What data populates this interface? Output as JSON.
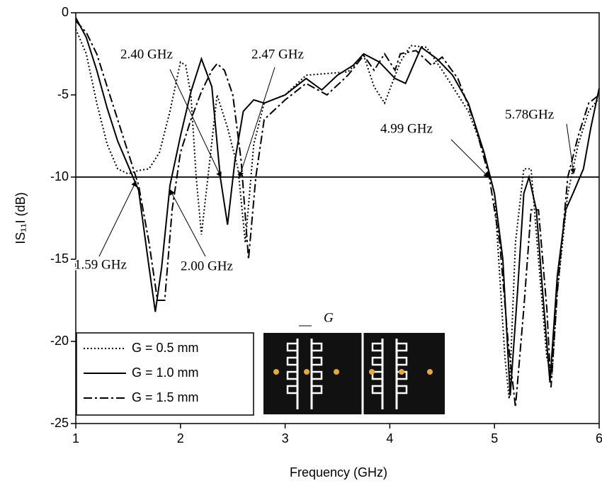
{
  "chart_data": {
    "type": "line",
    "xlabel": "Frequency (GHz)",
    "ylabel": "IS₁₁I (dB)",
    "xlim": [
      1,
      6
    ],
    "xticks": [
      1,
      2,
      3,
      4,
      5,
      6
    ],
    "ylim": [
      -25,
      0
    ],
    "yticks": [
      -25,
      -20,
      -15,
      -10,
      -5,
      0
    ],
    "reference_line": -10,
    "legend": "lower left",
    "inset_label": "G",
    "annotations": [
      "2.40 GHz",
      "2.47 GHz",
      "1.59 GHz",
      "2.00 GHz",
      "4.99 GHz",
      "5.78GHz"
    ],
    "series": [
      {
        "name": "G = 0.5 mm",
        "color": "#000000",
        "dash": "dotted",
        "x": [
          1.0,
          1.1,
          1.2,
          1.3,
          1.4,
          1.5,
          1.6,
          1.7,
          1.8,
          1.9,
          2.0,
          2.05,
          2.1,
          2.15,
          2.2,
          2.28,
          2.35,
          2.45,
          2.55,
          2.62,
          2.7,
          2.8,
          3.0,
          3.2,
          3.4,
          3.6,
          3.75,
          3.85,
          3.95,
          4.1,
          4.2,
          4.35,
          4.5,
          4.6,
          4.75,
          4.9,
          5.0,
          5.1,
          5.14,
          5.2,
          5.28,
          5.35,
          5.42,
          5.5,
          5.55,
          5.6,
          5.7,
          5.8,
          5.9,
          6.0
        ],
        "values": [
          -1,
          -2.5,
          -5.5,
          -8,
          -9.5,
          -9.8,
          -9.6,
          -9.5,
          -8.5,
          -6,
          -3,
          -3.2,
          -5,
          -10,
          -13.5,
          -9,
          -5,
          -7,
          -9.5,
          -14,
          -8,
          -5.5,
          -5,
          -3.8,
          -3.7,
          -3.6,
          -2.6,
          -4.5,
          -5.5,
          -3,
          -2,
          -2.1,
          -3.5,
          -4.5,
          -6,
          -8.5,
          -11,
          -21,
          -23.5,
          -14,
          -9.5,
          -9.5,
          -15,
          -21,
          -22,
          -17,
          -11,
          -8,
          -6,
          -5.2
        ]
      },
      {
        "name": "G = 1.0 mm",
        "color": "#000000",
        "dash": "solid",
        "x": [
          1.0,
          1.1,
          1.2,
          1.3,
          1.4,
          1.5,
          1.6,
          1.7,
          1.76,
          1.82,
          1.9,
          2.0,
          2.1,
          2.2,
          2.3,
          2.38,
          2.45,
          2.52,
          2.6,
          2.7,
          2.8,
          3.0,
          3.2,
          3.35,
          3.5,
          3.65,
          3.75,
          3.9,
          4.05,
          4.15,
          4.3,
          4.45,
          4.6,
          4.75,
          4.9,
          5.0,
          5.08,
          5.15,
          5.22,
          5.28,
          5.33,
          5.4,
          5.46,
          5.53,
          5.6,
          5.68,
          5.75,
          5.85,
          5.92,
          6.0
        ],
        "values": [
          -0.3,
          -1.5,
          -3.5,
          -5.8,
          -7.8,
          -9.3,
          -10.8,
          -15.5,
          -18.2,
          -15.5,
          -10.5,
          -7.5,
          -4.8,
          -2.8,
          -4.5,
          -10,
          -12.9,
          -9,
          -6,
          -5.3,
          -5.5,
          -5,
          -4,
          -4.7,
          -3.8,
          -3.2,
          -2.5,
          -3,
          -4,
          -4.3,
          -2.1,
          -2.8,
          -3.8,
          -5.5,
          -8.5,
          -11,
          -15,
          -23.3,
          -17,
          -11,
          -10,
          -12,
          -17,
          -22.5,
          -16,
          -12,
          -11,
          -9.5,
          -7,
          -4.6
        ]
      },
      {
        "name": "G = 1.5 mm",
        "color": "#000000",
        "dash": "dashed",
        "x": [
          1.0,
          1.1,
          1.2,
          1.3,
          1.4,
          1.5,
          1.6,
          1.7,
          1.78,
          1.85,
          1.92,
          2.0,
          2.1,
          2.2,
          2.3,
          2.35,
          2.42,
          2.5,
          2.58,
          2.65,
          2.72,
          2.8,
          3.0,
          3.2,
          3.4,
          3.6,
          3.75,
          3.85,
          3.95,
          4.05,
          4.1,
          4.25,
          4.4,
          4.5,
          4.65,
          4.8,
          4.95,
          5.05,
          5.13,
          5.2,
          5.28,
          5.35,
          5.42,
          5.5,
          5.54,
          5.6,
          5.7,
          5.8,
          5.9,
          6.0
        ],
        "values": [
          -0.5,
          -1.2,
          -2.5,
          -4.5,
          -6.5,
          -8.5,
          -10.5,
          -14,
          -17.5,
          -17.5,
          -12,
          -8.5,
          -6.5,
          -4.8,
          -3.5,
          -3.1,
          -3.5,
          -5,
          -9,
          -15,
          -10,
          -6.5,
          -5.3,
          -4.3,
          -5,
          -3.8,
          -2.6,
          -3.5,
          -2.5,
          -3.5,
          -2.5,
          -2.3,
          -3.2,
          -2.7,
          -4,
          -6.5,
          -10,
          -14,
          -20,
          -24,
          -18,
          -12,
          -12,
          -18,
          -22.8,
          -17,
          -10,
          -7.5,
          -5.5,
          -5
        ]
      }
    ]
  }
}
